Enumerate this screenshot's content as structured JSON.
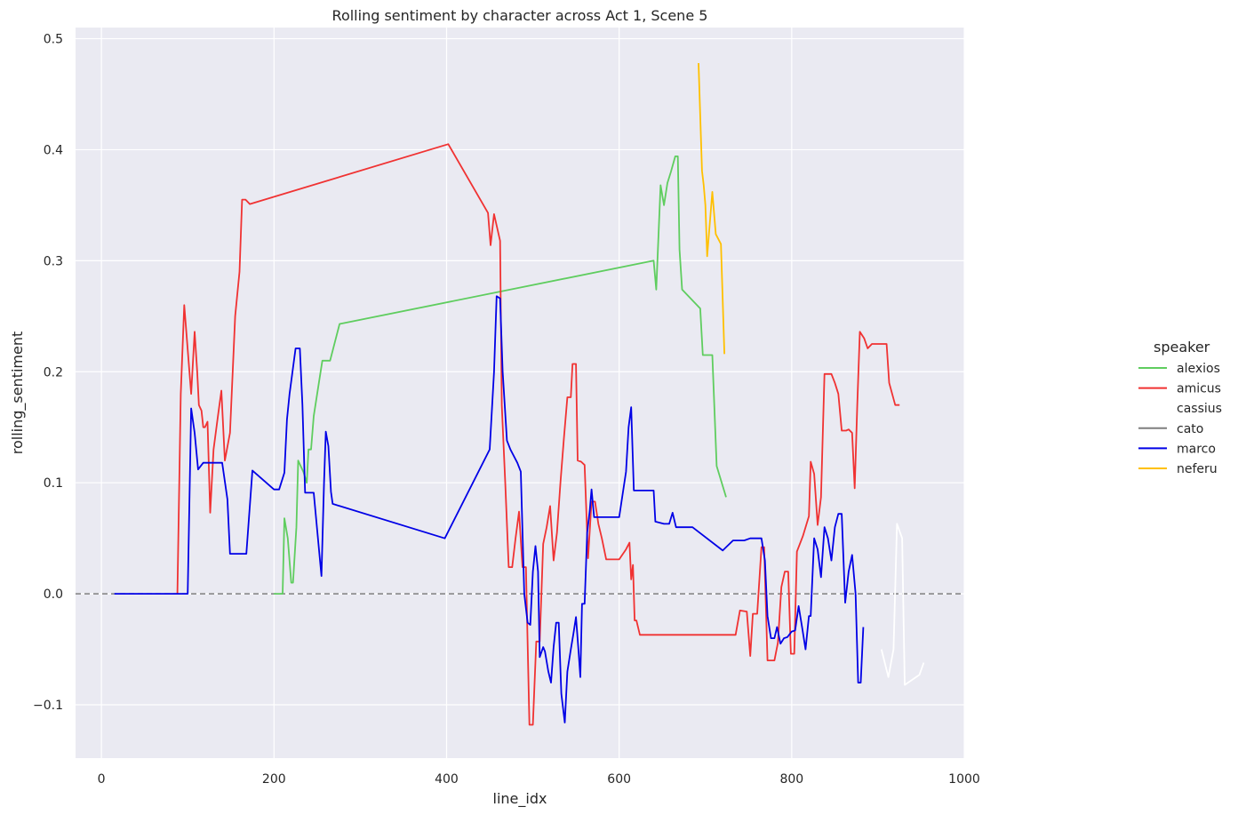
{
  "chart_data": {
    "type": "line",
    "title": "Rolling sentiment by character across Act 1, Scene 5",
    "xlabel": "line_idx",
    "ylabel": "rolling_sentiment",
    "xlim": [
      -30,
      1000
    ],
    "ylim": [
      -0.148,
      0.51
    ],
    "xticks": [
      0,
      200,
      400,
      600,
      800,
      1000
    ],
    "yticks": [
      -0.1,
      0.0,
      0.1,
      0.2,
      0.3,
      0.4,
      0.5
    ],
    "ytick_labels": [
      "−0.1",
      "0.0",
      "0.1",
      "0.2",
      "0.3",
      "0.4",
      "0.5"
    ],
    "grid": true,
    "reference_line": {
      "y": 0.0,
      "color": "#7f7f7f",
      "style": "dashed"
    },
    "legend": {
      "title": "speaker",
      "placement": "right"
    },
    "series": [
      {
        "name": "alexios",
        "color": "#5fcd5f",
        "points": [
          [
            200,
            0.0
          ],
          [
            210,
            0.0
          ],
          [
            212,
            0.068
          ],
          [
            216,
            0.05
          ],
          [
            220,
            0.01
          ],
          [
            222,
            0.01
          ],
          [
            226,
            0.06
          ],
          [
            228,
            0.12
          ],
          [
            234,
            0.11
          ],
          [
            238,
            0.1
          ],
          [
            240,
            0.13
          ],
          [
            243,
            0.13
          ],
          [
            246,
            0.16
          ],
          [
            252,
            0.19
          ],
          [
            256,
            0.21
          ],
          [
            262,
            0.21
          ],
          [
            265,
            0.21
          ],
          [
            276,
            0.243
          ],
          [
            640,
            0.3
          ],
          [
            643,
            0.274
          ],
          [
            648,
            0.368
          ],
          [
            652,
            0.35
          ],
          [
            656,
            0.37
          ],
          [
            660,
            0.38
          ],
          [
            665,
            0.394
          ],
          [
            668,
            0.394
          ],
          [
            670,
            0.31
          ],
          [
            673,
            0.274
          ],
          [
            694,
            0.257
          ],
          [
            697,
            0.215
          ],
          [
            708,
            0.215
          ],
          [
            713,
            0.115
          ],
          [
            724,
            0.087
          ]
        ]
      },
      {
        "name": "amicus",
        "color": "#f03232",
        "points": [
          [
            88,
            0.0
          ],
          [
            92,
            0.18
          ],
          [
            96,
            0.26
          ],
          [
            100,
            0.22
          ],
          [
            104,
            0.18
          ],
          [
            108,
            0.236
          ],
          [
            111,
            0.2
          ],
          [
            113,
            0.17
          ],
          [
            116,
            0.165
          ],
          [
            118,
            0.15
          ],
          [
            120,
            0.15
          ],
          [
            123,
            0.155
          ],
          [
            126,
            0.073
          ],
          [
            130,
            0.13
          ],
          [
            135,
            0.16
          ],
          [
            139,
            0.183
          ],
          [
            143,
            0.12
          ],
          [
            149,
            0.145
          ],
          [
            155,
            0.25
          ],
          [
            160,
            0.29
          ],
          [
            163,
            0.355
          ],
          [
            167,
            0.355
          ],
          [
            172,
            0.351
          ],
          [
            402,
            0.405
          ],
          [
            448,
            0.343
          ],
          [
            451,
            0.314
          ],
          [
            455,
            0.342
          ],
          [
            462,
            0.318
          ],
          [
            464,
            0.17
          ],
          [
            468,
            0.1
          ],
          [
            472,
            0.024
          ],
          [
            476,
            0.024
          ],
          [
            480,
            0.05
          ],
          [
            484,
            0.074
          ],
          [
            488,
            0.024
          ],
          [
            492,
            0.024
          ],
          [
            496,
            -0.118
          ],
          [
            500,
            -0.118
          ],
          [
            504,
            -0.043
          ],
          [
            508,
            -0.043
          ],
          [
            512,
            0.045
          ],
          [
            516,
            0.06
          ],
          [
            520,
            0.079
          ],
          [
            524,
            0.03
          ],
          [
            528,
            0.055
          ],
          [
            532,
            0.1
          ],
          [
            536,
            0.14
          ],
          [
            540,
            0.177
          ],
          [
            544,
            0.177
          ],
          [
            546,
            0.207
          ],
          [
            550,
            0.207
          ],
          [
            552,
            0.12
          ],
          [
            556,
            0.119
          ],
          [
            560,
            0.116
          ],
          [
            564,
            0.032
          ],
          [
            568,
            0.083
          ],
          [
            572,
            0.083
          ],
          [
            576,
            0.063
          ],
          [
            580,
            0.05
          ],
          [
            585,
            0.031
          ],
          [
            600,
            0.031
          ],
          [
            608,
            0.04
          ],
          [
            612,
            0.046
          ],
          [
            614,
            0.013
          ],
          [
            616,
            0.026
          ],
          [
            618,
            -0.024
          ],
          [
            620,
            -0.024
          ],
          [
            624,
            -0.037
          ],
          [
            735,
            -0.037
          ],
          [
            740,
            -0.015
          ],
          [
            748,
            -0.016
          ],
          [
            752,
            -0.056
          ],
          [
            755,
            -0.018
          ],
          [
            760,
            -0.018
          ],
          [
            765,
            0.042
          ],
          [
            768,
            0.042
          ],
          [
            772,
            -0.06
          ],
          [
            780,
            -0.06
          ],
          [
            784,
            -0.044
          ],
          [
            788,
            0.006
          ],
          [
            792,
            0.02
          ],
          [
            796,
            0.02
          ],
          [
            799,
            -0.054
          ],
          [
            803,
            -0.054
          ],
          [
            806,
            0.038
          ],
          [
            813,
            0.052
          ],
          [
            820,
            0.07
          ],
          [
            822,
            0.119
          ],
          [
            826,
            0.108
          ],
          [
            830,
            0.062
          ],
          [
            834,
            0.087
          ],
          [
            838,
            0.198
          ],
          [
            846,
            0.198
          ],
          [
            850,
            0.19
          ],
          [
            854,
            0.18
          ],
          [
            858,
            0.147
          ],
          [
            863,
            0.147
          ],
          [
            866,
            0.148
          ],
          [
            870,
            0.145
          ],
          [
            873,
            0.095
          ],
          [
            876,
            0.17
          ],
          [
            879,
            0.236
          ],
          [
            884,
            0.23
          ],
          [
            888,
            0.221
          ],
          [
            893,
            0.225
          ],
          [
            910,
            0.225
          ],
          [
            913,
            0.19
          ],
          [
            920,
            0.17
          ],
          [
            925,
            0.17
          ]
        ]
      },
      {
        "name": "cassius",
        "color": "#ffffff",
        "points": [
          [
            904,
            -0.05
          ],
          [
            912,
            -0.075
          ],
          [
            918,
            -0.05
          ],
          [
            922,
            0.063
          ],
          [
            928,
            0.05
          ],
          [
            931,
            -0.082
          ],
          [
            948,
            -0.073
          ],
          [
            953,
            -0.062
          ]
        ]
      },
      {
        "name": "cato",
        "color": "#7f7f7f",
        "points": []
      },
      {
        "name": "marco",
        "color": "#0000e6",
        "points": [
          [
            15,
            0.0
          ],
          [
            100,
            0.0
          ],
          [
            104,
            0.167
          ],
          [
            108,
            0.145
          ],
          [
            112,
            0.112
          ],
          [
            118,
            0.118
          ],
          [
            140,
            0.118
          ],
          [
            146,
            0.085
          ],
          [
            149,
            0.036
          ],
          [
            168,
            0.036
          ],
          [
            175,
            0.111
          ],
          [
            200,
            0.094
          ],
          [
            206,
            0.094
          ],
          [
            212,
            0.109
          ],
          [
            215,
            0.157
          ],
          [
            218,
            0.18
          ],
          [
            225,
            0.221
          ],
          [
            230,
            0.221
          ],
          [
            233,
            0.17
          ],
          [
            236,
            0.091
          ],
          [
            246,
            0.091
          ],
          [
            255,
            0.016
          ],
          [
            258,
            0.1
          ],
          [
            260,
            0.146
          ],
          [
            263,
            0.133
          ],
          [
            266,
            0.092
          ],
          [
            268,
            0.081
          ],
          [
            398,
            0.05
          ],
          [
            450,
            0.13
          ],
          [
            455,
            0.2
          ],
          [
            458,
            0.268
          ],
          [
            462,
            0.266
          ],
          [
            465,
            0.2
          ],
          [
            470,
            0.138
          ],
          [
            474,
            0.13
          ],
          [
            482,
            0.118
          ],
          [
            486,
            0.11
          ],
          [
            490,
            0.0
          ],
          [
            494,
            -0.026
          ],
          [
            497,
            -0.028
          ],
          [
            500,
            0.02
          ],
          [
            503,
            0.043
          ],
          [
            506,
            0.02
          ],
          [
            508,
            -0.057
          ],
          [
            512,
            -0.048
          ],
          [
            514,
            -0.052
          ],
          [
            518,
            -0.07
          ],
          [
            521,
            -0.08
          ],
          [
            524,
            -0.048
          ],
          [
            527,
            -0.026
          ],
          [
            530,
            -0.026
          ],
          [
            533,
            -0.09
          ],
          [
            537,
            -0.116
          ],
          [
            540,
            -0.07
          ],
          [
            544,
            -0.05
          ],
          [
            547,
            -0.036
          ],
          [
            550,
            -0.021
          ],
          [
            553,
            -0.052
          ],
          [
            555,
            -0.075
          ],
          [
            557,
            -0.009
          ],
          [
            560,
            -0.009
          ],
          [
            563,
            0.055
          ],
          [
            566,
            0.075
          ],
          [
            568,
            0.094
          ],
          [
            571,
            0.069
          ],
          [
            600,
            0.069
          ],
          [
            608,
            0.11
          ],
          [
            611,
            0.15
          ],
          [
            614,
            0.168
          ],
          [
            617,
            0.093
          ],
          [
            636,
            0.093
          ],
          [
            640,
            0.093
          ],
          [
            642,
            0.065
          ],
          [
            652,
            0.063
          ],
          [
            658,
            0.063
          ],
          [
            662,
            0.073
          ],
          [
            666,
            0.06
          ],
          [
            685,
            0.06
          ],
          [
            720,
            0.039
          ],
          [
            732,
            0.048
          ],
          [
            745,
            0.048
          ],
          [
            752,
            0.05
          ],
          [
            765,
            0.05
          ],
          [
            769,
            0.03
          ],
          [
            772,
            -0.02
          ],
          [
            776,
            -0.04
          ],
          [
            780,
            -0.04
          ],
          [
            783,
            -0.03
          ],
          [
            787,
            -0.045
          ],
          [
            791,
            -0.04
          ],
          [
            795,
            -0.039
          ],
          [
            800,
            -0.034
          ],
          [
            804,
            -0.033
          ],
          [
            808,
            -0.011
          ],
          [
            812,
            -0.03
          ],
          [
            816,
            -0.05
          ],
          [
            820,
            -0.02
          ],
          [
            822,
            -0.02
          ],
          [
            826,
            0.05
          ],
          [
            830,
            0.04
          ],
          [
            834,
            0.015
          ],
          [
            838,
            0.06
          ],
          [
            842,
            0.05
          ],
          [
            846,
            0.03
          ],
          [
            850,
            0.06
          ],
          [
            854,
            0.072
          ],
          [
            858,
            0.072
          ],
          [
            862,
            -0.008
          ],
          [
            866,
            0.02
          ],
          [
            870,
            0.035
          ],
          [
            874,
            0.0
          ],
          [
            877,
            -0.08
          ],
          [
            880,
            -0.08
          ],
          [
            883,
            -0.03
          ]
        ]
      },
      {
        "name": "neferu",
        "color": "#ffc000",
        "points": [
          [
            692,
            0.478
          ],
          [
            696,
            0.381
          ],
          [
            698,
            0.368
          ],
          [
            700,
            0.35
          ],
          [
            702,
            0.304
          ],
          [
            708,
            0.362
          ],
          [
            712,
            0.324
          ],
          [
            718,
            0.315
          ],
          [
            722,
            0.216
          ]
        ]
      }
    ]
  }
}
